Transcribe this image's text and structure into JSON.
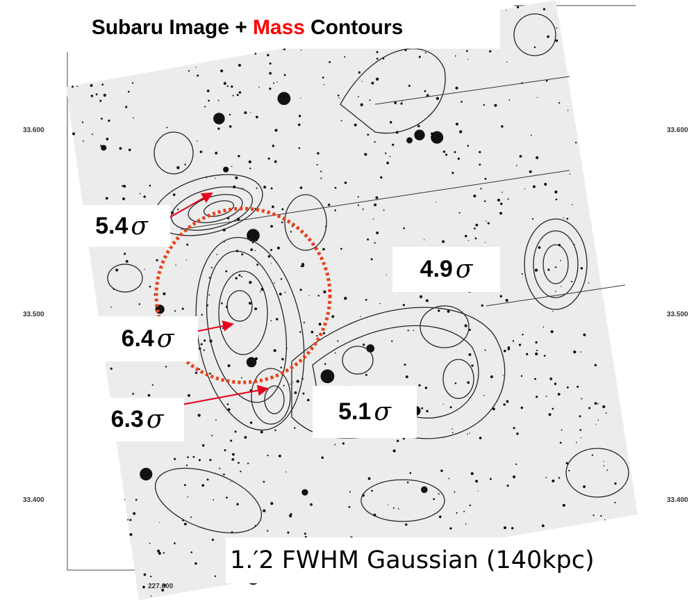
{
  "title": {
    "before": "Subaru Image +",
    "highlight": "Mass",
    "after": "Contours"
  },
  "left_axis_labels": [
    "33.600",
    "33.500",
    "33.400"
  ],
  "right_axis_labels": [
    "33.600",
    "33.500",
    "33.400"
  ],
  "bottom_axis_labels": [
    "227.600"
  ],
  "annotations": [
    {
      "value": "5.4",
      "symbol": "σ"
    },
    {
      "value": "4.9",
      "symbol": "σ"
    },
    {
      "value": "6.4",
      "symbol": "σ"
    },
    {
      "value": "6.3",
      "symbol": "σ"
    },
    {
      "value": "5.1",
      "symbol": "σ"
    }
  ],
  "caption": "1.′2 FWHM Gaussian (140kpc)"
}
